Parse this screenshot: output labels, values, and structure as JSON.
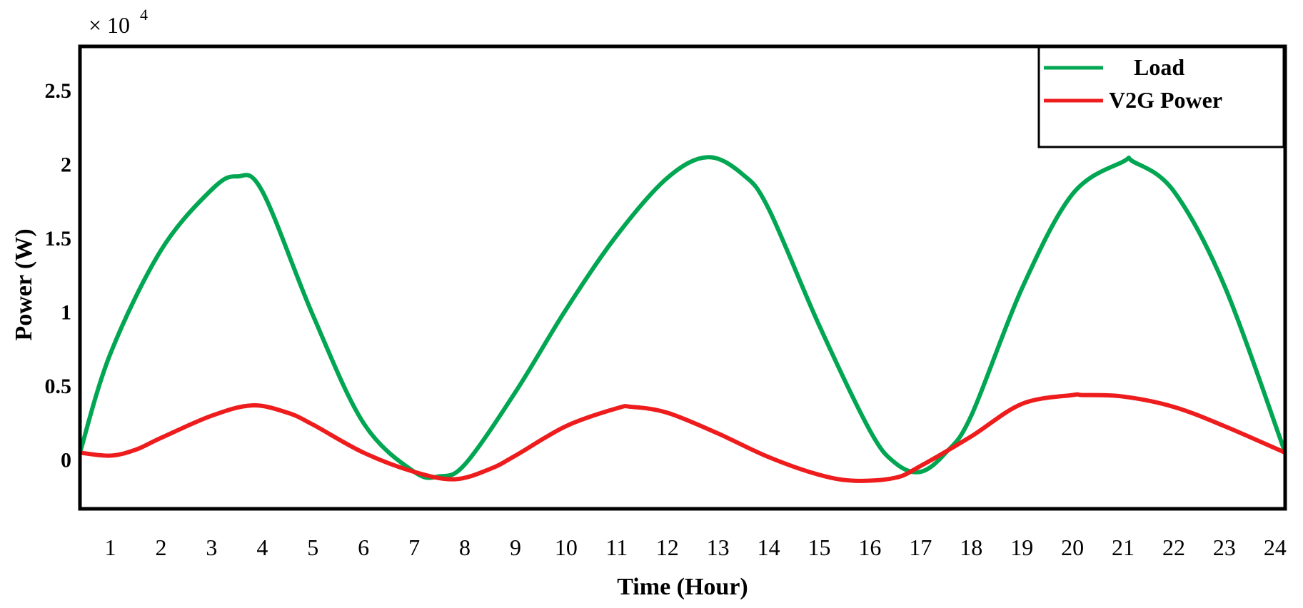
{
  "chart_data": {
    "type": "line",
    "title": "",
    "xlabel": "Time (Hour)",
    "ylabel": "Power (W)",
    "y_multiplier_label": "× 10",
    "y_multiplier_exponent": "4",
    "x_ticks": [
      "1",
      "2",
      "3",
      "4",
      "5",
      "6",
      "7",
      "8",
      "9",
      "10",
      "11",
      "12",
      "13",
      "14",
      "15",
      "16",
      "17",
      "18",
      "19",
      "20",
      "21",
      "22",
      "23",
      "24"
    ],
    "y_ticks": [
      {
        "value": 0,
        "label": "0"
      },
      {
        "value": 0.5,
        "label": "0.5"
      },
      {
        "value": 1,
        "label": "1"
      },
      {
        "value": 1.5,
        "label": "1.5"
      },
      {
        "value": 2,
        "label": "2"
      },
      {
        "value": 2.5,
        "label": "2.5"
      }
    ],
    "xlim": [
      0.4,
      24.2
    ],
    "ylim": [
      -0.33,
      2.8
    ],
    "grid": false,
    "legend_position": "top-right",
    "series": [
      {
        "name": "Load",
        "color": "#00a651",
        "x": [
          0.4,
          1.0,
          2.0,
          3.0,
          3.5,
          4.0,
          5.0,
          6.0,
          7.0,
          7.5,
          8.0,
          9.0,
          10.0,
          11.0,
          12.0,
          12.8,
          13.5,
          14.0,
          15.0,
          16.0,
          16.5,
          17.0,
          17.5,
          18.0,
          19.0,
          20.0,
          21.0,
          21.2,
          22.0,
          23.0,
          24.2
        ],
        "y": [
          0.05,
          0.72,
          1.42,
          1.83,
          1.92,
          1.82,
          0.98,
          0.25,
          -0.08,
          -0.11,
          -0.03,
          0.46,
          1.02,
          1.52,
          1.91,
          2.05,
          1.93,
          1.7,
          0.91,
          0.2,
          -0.02,
          -0.08,
          0.05,
          0.3,
          1.16,
          1.8,
          2.02,
          2.02,
          1.82,
          1.18,
          0.05
        ]
      },
      {
        "name": "V2G Power",
        "color": "#ee1c1c",
        "x": [
          0.4,
          1.0,
          1.5,
          2.0,
          3.0,
          3.8,
          4.5,
          5.0,
          6.0,
          7.0,
          7.8,
          8.5,
          9.0,
          10.0,
          11.0,
          11.3,
          12.0,
          13.0,
          14.0,
          15.0,
          15.7,
          16.5,
          17.0,
          18.0,
          19.0,
          20.0,
          20.2,
          21.0,
          22.0,
          23.0,
          24.2
        ],
        "y": [
          0.05,
          0.03,
          0.07,
          0.15,
          0.3,
          0.37,
          0.32,
          0.24,
          0.05,
          -0.08,
          -0.13,
          -0.06,
          0.03,
          0.23,
          0.35,
          0.36,
          0.32,
          0.18,
          0.02,
          -0.1,
          -0.14,
          -0.12,
          -0.04,
          0.16,
          0.38,
          0.44,
          0.44,
          0.43,
          0.36,
          0.23,
          0.05
        ]
      }
    ]
  }
}
